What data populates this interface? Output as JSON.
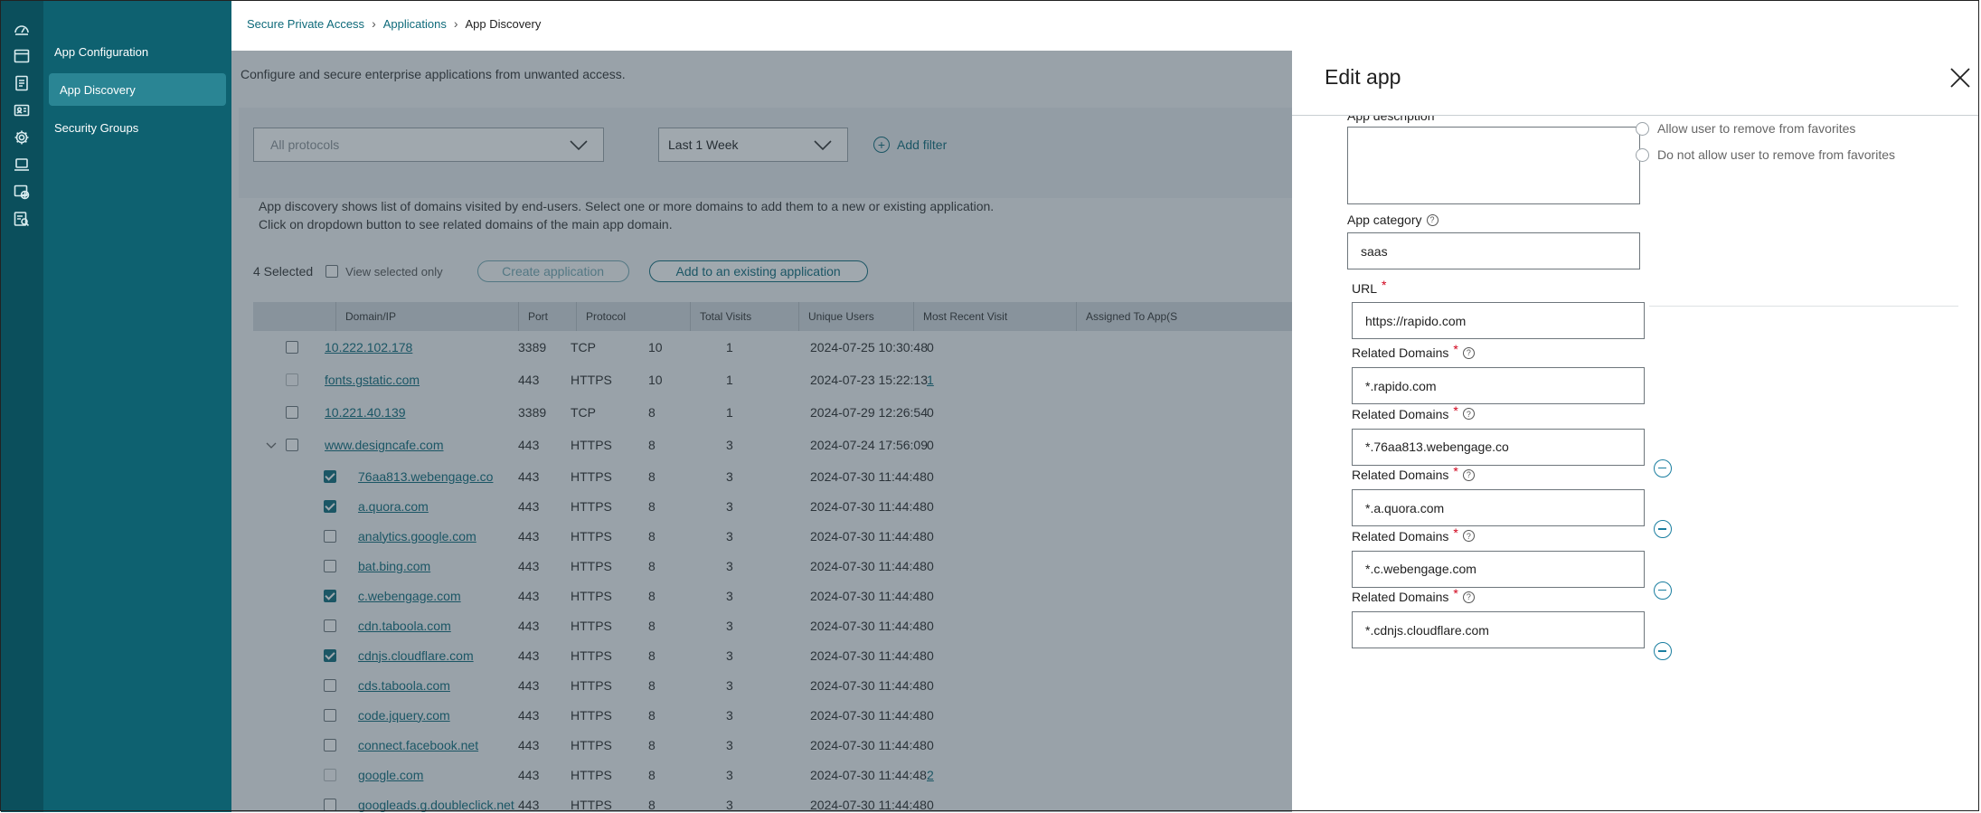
{
  "rail": {
    "icons": [
      "dashboard-icon",
      "browser-window-icon",
      "document-icon",
      "id-card-icon",
      "gear-icon",
      "laptop-icon",
      "web-globe-icon",
      "report-search-icon"
    ]
  },
  "subnav": {
    "items": [
      {
        "label": "App Configuration",
        "active": false
      },
      {
        "label": "App Discovery",
        "active": true
      },
      {
        "label": "Security Groups",
        "active": false
      }
    ]
  },
  "breadcrumb": {
    "root": "Secure Private Access",
    "parent": "Applications",
    "current": "App Discovery",
    "separator": "›"
  },
  "page": {
    "subtitle": "Configure and secure enterprise applications from unwanted access.",
    "protocol_filter": "All protocols",
    "time_filter": "Last 1 Week",
    "add_filter": "Add filter",
    "info_line1": "App discovery shows list of domains visited by end-users. Select one or more domains to add them to a new or existing application.",
    "info_line2": "Click on dropdown button to see related domains of the main app domain.",
    "selected_count": "4 Selected",
    "view_selected_only": "View selected only",
    "create_application": "Create application",
    "add_existing": "Add to an existing application"
  },
  "table": {
    "headers": [
      "Domain/IP",
      "Port",
      "Protocol",
      "Total Visits",
      "Unique Users",
      "Most Recent Visit",
      "Assigned To App(S"
    ],
    "rows": [
      {
        "domain": "10.222.102.178",
        "port": "3389",
        "protocol": "TCP",
        "visits": "10",
        "users": "1",
        "recent": "2024-07-25 10:30:48",
        "assigned": "0",
        "level": 0,
        "checked": false,
        "disabled": false,
        "assigned_link": false,
        "expanded": false
      },
      {
        "domain": "fonts.gstatic.com",
        "port": "443",
        "protocol": "HTTPS",
        "visits": "10",
        "users": "1",
        "recent": "2024-07-23 15:22:13",
        "assigned": "1",
        "level": 0,
        "checked": false,
        "disabled": true,
        "assigned_link": true,
        "expanded": false
      },
      {
        "domain": "10.221.40.139",
        "port": "3389",
        "protocol": "TCP",
        "visits": "8",
        "users": "1",
        "recent": "2024-07-29 12:26:54",
        "assigned": "0",
        "level": 0,
        "checked": false,
        "disabled": false,
        "assigned_link": false,
        "expanded": false
      },
      {
        "domain": "www.designcafe.com",
        "port": "443",
        "protocol": "HTTPS",
        "visits": "8",
        "users": "3",
        "recent": "2024-07-24 17:56:09",
        "assigned": "0",
        "level": 0,
        "checked": false,
        "disabled": false,
        "assigned_link": false,
        "expanded": true
      },
      {
        "domain": "76aa813.webengage.co",
        "port": "443",
        "protocol": "HTTPS",
        "visits": "8",
        "users": "3",
        "recent": "2024-07-30 11:44:48",
        "assigned": "0",
        "level": 1,
        "checked": true,
        "disabled": false,
        "assigned_link": false,
        "expanded": false
      },
      {
        "domain": "a.quora.com",
        "port": "443",
        "protocol": "HTTPS",
        "visits": "8",
        "users": "3",
        "recent": "2024-07-30 11:44:48",
        "assigned": "0",
        "level": 1,
        "checked": true,
        "disabled": false,
        "assigned_link": false,
        "expanded": false
      },
      {
        "domain": "analytics.google.com",
        "port": "443",
        "protocol": "HTTPS",
        "visits": "8",
        "users": "3",
        "recent": "2024-07-30 11:44:48",
        "assigned": "0",
        "level": 1,
        "checked": false,
        "disabled": false,
        "assigned_link": false,
        "expanded": false
      },
      {
        "domain": "bat.bing.com",
        "port": "443",
        "protocol": "HTTPS",
        "visits": "8",
        "users": "3",
        "recent": "2024-07-30 11:44:48",
        "assigned": "0",
        "level": 1,
        "checked": false,
        "disabled": false,
        "assigned_link": false,
        "expanded": false
      },
      {
        "domain": "c.webengage.com",
        "port": "443",
        "protocol": "HTTPS",
        "visits": "8",
        "users": "3",
        "recent": "2024-07-30 11:44:48",
        "assigned": "0",
        "level": 1,
        "checked": true,
        "disabled": false,
        "assigned_link": false,
        "expanded": false
      },
      {
        "domain": "cdn.taboola.com",
        "port": "443",
        "protocol": "HTTPS",
        "visits": "8",
        "users": "3",
        "recent": "2024-07-30 11:44:48",
        "assigned": "0",
        "level": 1,
        "checked": false,
        "disabled": false,
        "assigned_link": false,
        "expanded": false
      },
      {
        "domain": "cdnjs.cloudflare.com",
        "port": "443",
        "protocol": "HTTPS",
        "visits": "8",
        "users": "3",
        "recent": "2024-07-30 11:44:48",
        "assigned": "0",
        "level": 1,
        "checked": true,
        "disabled": false,
        "assigned_link": false,
        "expanded": false
      },
      {
        "domain": "cds.taboola.com",
        "port": "443",
        "protocol": "HTTPS",
        "visits": "8",
        "users": "3",
        "recent": "2024-07-30 11:44:48",
        "assigned": "0",
        "level": 1,
        "checked": false,
        "disabled": false,
        "assigned_link": false,
        "expanded": false
      },
      {
        "domain": "code.jquery.com",
        "port": "443",
        "protocol": "HTTPS",
        "visits": "8",
        "users": "3",
        "recent": "2024-07-30 11:44:48",
        "assigned": "0",
        "level": 1,
        "checked": false,
        "disabled": false,
        "assigned_link": false,
        "expanded": false
      },
      {
        "domain": "connect.facebook.net",
        "port": "443",
        "protocol": "HTTPS",
        "visits": "8",
        "users": "3",
        "recent": "2024-07-30 11:44:48",
        "assigned": "0",
        "level": 1,
        "checked": false,
        "disabled": false,
        "assigned_link": false,
        "expanded": false
      },
      {
        "domain": "google.com",
        "port": "443",
        "protocol": "HTTPS",
        "visits": "8",
        "users": "3",
        "recent": "2024-07-30 11:44:48",
        "assigned": "2",
        "level": 1,
        "checked": false,
        "disabled": true,
        "assigned_link": true,
        "expanded": false
      },
      {
        "domain": "googleads.g.doubleclick.net",
        "port": "443",
        "protocol": "HTTPS",
        "visits": "8",
        "users": "3",
        "recent": "2024-07-30 11:44:48",
        "assigned": "0",
        "level": 1,
        "checked": false,
        "disabled": false,
        "assigned_link": false,
        "expanded": false
      }
    ]
  },
  "panel": {
    "title": "Edit app",
    "app_description_label": "App description",
    "app_description_value": "",
    "favorites_options": [
      "Allow user to remove from favorites",
      "Do not allow user to remove from favorites"
    ],
    "app_category_label": "App category",
    "app_category_value": "saas",
    "url_label": "URL",
    "url_value": "https://rapido.com",
    "related_domains_label": "Related Domains",
    "related_domains": [
      "*.rapido.com",
      "*.76aa813.webengage.co",
      "*.a.quora.com",
      "*.c.webengage.com",
      "*.cdnjs.cloudflare.com"
    ]
  },
  "colors": {
    "rail": "#0b4f5c",
    "subnav": "#0e6170",
    "subnav_active": "#2a8594",
    "accent": "#0e6a7a",
    "required": "#d0021b",
    "remove_icon": "#1a7ea0"
  }
}
